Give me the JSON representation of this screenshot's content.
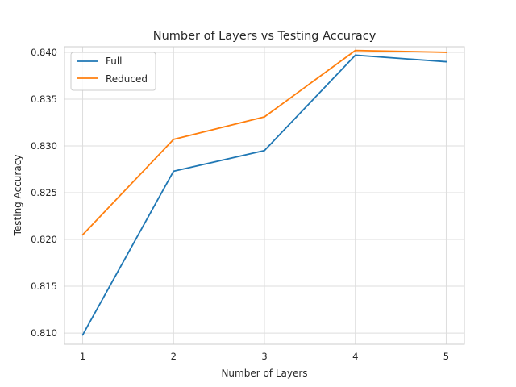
{
  "chart_data": {
    "type": "line",
    "title": "Number of Layers vs Testing Accuracy",
    "xlabel": "Number of Layers",
    "ylabel": "Testing Accuracy",
    "x": [
      1,
      2,
      3,
      4,
      5
    ],
    "xticks": [
      "1",
      "2",
      "3",
      "4",
      "5"
    ],
    "yticks": [
      "0.810",
      "0.815",
      "0.820",
      "0.825",
      "0.830",
      "0.835",
      "0.840"
    ],
    "xlim": [
      0.8,
      5.2
    ],
    "ylim": [
      0.8088,
      0.8406
    ],
    "grid": true,
    "legend_position": "top-left",
    "series": [
      {
        "name": "Full",
        "color": "#1f77b4",
        "values": [
          0.8098,
          0.8273,
          0.8295,
          0.8397,
          0.839
        ]
      },
      {
        "name": "Reduced",
        "color": "#ff7f0e",
        "values": [
          0.8205,
          0.8307,
          0.8331,
          0.8402,
          0.84
        ]
      }
    ]
  }
}
